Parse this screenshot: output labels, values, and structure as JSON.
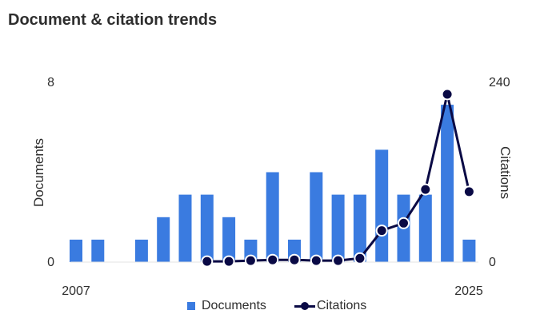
{
  "header": {
    "title": "Document & citation trends"
  },
  "colors": {
    "bar": "#3a7be0",
    "line": "#0a0a45",
    "marker_stroke": "#ffffff",
    "text": "#2e2e2e"
  },
  "legend": {
    "documents_label": "Documents",
    "citations_label": "Citations"
  },
  "chart_data": {
    "type": "bar",
    "title": "Document & citation trends",
    "x": [
      2007,
      2008,
      2009,
      2010,
      2011,
      2012,
      2013,
      2014,
      2015,
      2016,
      2017,
      2018,
      2019,
      2020,
      2021,
      2022,
      2023,
      2024,
      2025
    ],
    "x_tick_labels": [
      "2007",
      "2025"
    ],
    "ylabel": "Documents",
    "y2label": "Citations",
    "ylim": [
      0,
      8
    ],
    "y2lim": [
      0,
      240
    ],
    "y_tick_labels": [
      "0",
      "8"
    ],
    "y2_tick_labels": [
      "0",
      "240"
    ],
    "grid": false,
    "legend_position": "bottom",
    "series": [
      {
        "name": "Documents",
        "type": "bar",
        "axis": "left",
        "values": [
          1,
          1,
          0,
          1,
          2,
          3,
          3,
          2,
          1,
          4,
          1,
          4,
          3,
          3,
          5,
          3,
          3,
          7,
          1
        ]
      },
      {
        "name": "Citations",
        "type": "line",
        "axis": "right",
        "values": [
          null,
          null,
          null,
          null,
          null,
          null,
          1,
          1,
          2,
          3,
          3,
          2,
          2,
          5,
          42,
          52,
          97,
          224,
          94
        ]
      }
    ]
  }
}
